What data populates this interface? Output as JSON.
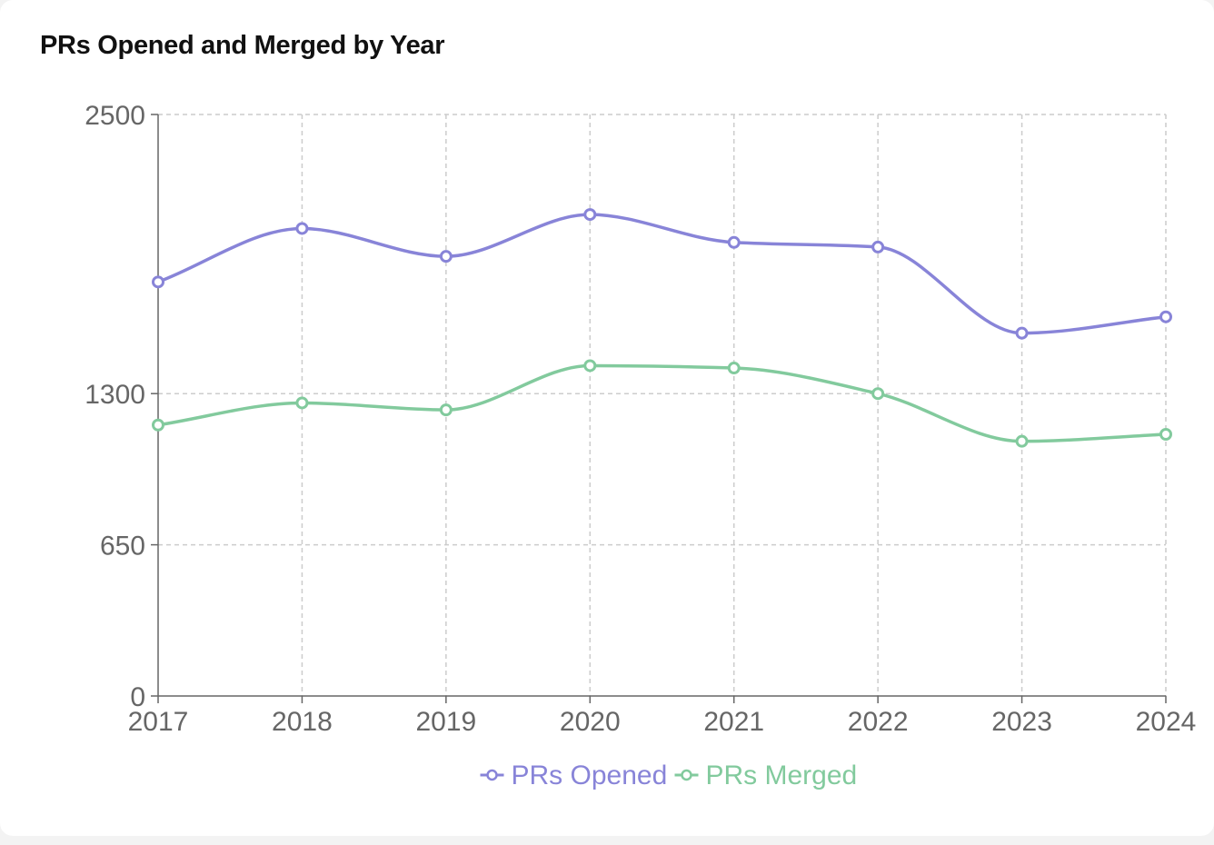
{
  "chart_data": {
    "type": "line",
    "title": "PRs Opened and Merged by Year",
    "xlabel": "",
    "ylabel": "",
    "categories": [
      "2017",
      "2018",
      "2019",
      "2020",
      "2021",
      "2022",
      "2023",
      "2024"
    ],
    "y_ticks": [
      0,
      650,
      1300,
      2500
    ],
    "y_tick_labels": [
      "0",
      "650",
      "1300",
      "2500"
    ],
    "ylim": [
      0,
      2500
    ],
    "grid": true,
    "legend_position": "bottom",
    "series": [
      {
        "name": "PRs Opened",
        "color": "#8884d8",
        "values": [
          1780,
          2010,
          1890,
          2070,
          1950,
          1930,
          1560,
          1630
        ]
      },
      {
        "name": "PRs Merged",
        "color": "#82ca9d",
        "values": [
          1165,
          1260,
          1230,
          1420,
          1410,
          1300,
          1095,
          1125
        ]
      }
    ]
  }
}
